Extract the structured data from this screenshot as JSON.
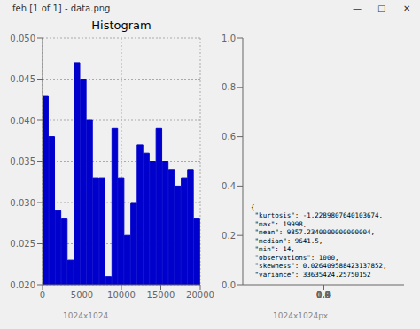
{
  "chart_data": [
    {
      "type": "histogram",
      "title": "Histogram",
      "bins": [
        0,
        800,
        1600,
        2400,
        3200,
        4000,
        4800,
        5600,
        6400,
        7200,
        8000,
        8800,
        9600,
        10400,
        11200,
        12000,
        12800,
        13600,
        14400,
        15200,
        16000,
        16800,
        17600,
        18400,
        19200,
        20000
      ],
      "values": [
        0.043,
        0.038,
        0.029,
        0.028,
        0.023,
        0.047,
        0.045,
        0.04,
        0.033,
        0.033,
        0.021,
        0.039,
        0.033,
        0.026,
        0.03,
        0.037,
        0.036,
        0.035,
        0.039,
        0.035,
        0.034,
        0.032,
        0.033,
        0.034,
        0.028
      ],
      "color": "#0000cc",
      "xlim": [
        0,
        20000
      ],
      "ylim": [
        0.02,
        0.05
      ],
      "xticks": [
        0,
        5000,
        10000,
        15000,
        20000
      ],
      "yticks": [
        {
          "value": 0.02,
          "label": "0.020"
        },
        0.025,
        {
          "value": 0.03,
          "label": "0.030"
        },
        0.035,
        {
          "value": 0.04,
          "label": "0.040"
        },
        0.045,
        {
          "value": 0.05,
          "label": "0.050"
        }
      ],
      "grid": true,
      "annotations": [
        "feh [1 of 1] - data.png",
        "—",
        "□",
        "✕",
        "1024x1024"
      ]
    },
    {
      "type": "text",
      "xlim": [
        0,
        1
      ],
      "ylim": [
        0,
        1
      ],
      "xticks": [
        {
          "value": 0,
          "label": "0.0"
        },
        0.2,
        0.4,
        0.6,
        0.8,
        {
          "value": 1,
          "label": "1.0"
        }
      ],
      "yticks": [
        {
          "value": 0,
          "label": "0.0"
        },
        0.2,
        0.4,
        0.6,
        0.8,
        {
          "value": 1,
          "label": "1.0"
        }
      ],
      "grid": false,
      "annotations": [
        "{\n \"kurtosis\": -1.2289807640103674,\n \"max\": 19998,\n \"mean\": 9857.2340000000000004,\n \"median\": 9641.5,\n \"min\": 14,\n \"observations\": 1000,\n \"skewness\": 0.026409588423137852,\n \"variance\": 33635424.25750152",
        "1024x1024px"
      ]
    }
  ]
}
